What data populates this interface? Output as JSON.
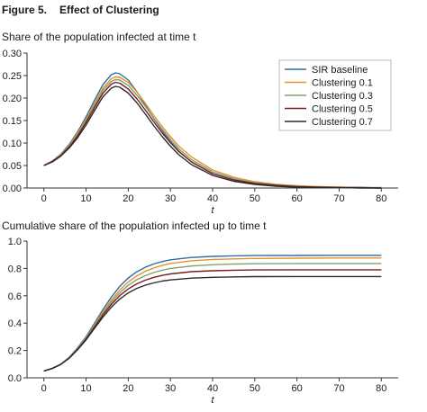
{
  "figure": {
    "number": "Figure 5.",
    "title": "Effect of Clustering"
  },
  "legend": [
    "SIR baseline",
    "Clustering 0.1",
    "Clustering 0.3",
    "Clustering 0.5",
    "Clustering 0.7"
  ],
  "colors": {
    "SIR baseline": "#2e6fa6",
    "Clustering 0.1": "#e8902c",
    "Clustering 0.3": "#7fa46b",
    "Clustering 0.5": "#7b1c23",
    "Clustering 0.7": "#2b2b2b"
  },
  "chart_data": [
    {
      "type": "line",
      "title": "Share of the population infected at time t",
      "xlabel": "t",
      "ylabel": "",
      "xlim": [
        -4,
        84
      ],
      "ylim": [
        0,
        0.3
      ],
      "xticks": [
        0,
        10,
        20,
        30,
        40,
        50,
        60,
        70,
        80
      ],
      "yticks": [
        "0.00",
        "0.05",
        "0.10",
        "0.15",
        "0.20",
        "0.25",
        "0.30"
      ],
      "legend_position": "top-right",
      "x": [
        0,
        2,
        4,
        6,
        8,
        10,
        12,
        14,
        16,
        17,
        18,
        20,
        22,
        24,
        26,
        28,
        30,
        32,
        35,
        40,
        45,
        50,
        55,
        60,
        65,
        70,
        75,
        80
      ],
      "series": [
        {
          "name": "SIR baseline",
          "values": [
            0.05,
            0.06,
            0.075,
            0.097,
            0.125,
            0.158,
            0.195,
            0.23,
            0.252,
            0.256,
            0.254,
            0.24,
            0.215,
            0.185,
            0.155,
            0.128,
            0.103,
            0.082,
            0.058,
            0.032,
            0.018,
            0.01,
            0.006,
            0.003,
            0.002,
            0.001,
            0.001,
            0.0
          ]
        },
        {
          "name": "Clustering 0.1",
          "values": [
            0.05,
            0.06,
            0.074,
            0.095,
            0.122,
            0.153,
            0.188,
            0.222,
            0.243,
            0.247,
            0.246,
            0.235,
            0.214,
            0.189,
            0.162,
            0.137,
            0.114,
            0.093,
            0.069,
            0.04,
            0.024,
            0.014,
            0.008,
            0.005,
            0.003,
            0.002,
            0.001,
            0.001
          ]
        },
        {
          "name": "Clustering 0.3",
          "values": [
            0.05,
            0.059,
            0.073,
            0.093,
            0.119,
            0.15,
            0.184,
            0.217,
            0.237,
            0.241,
            0.24,
            0.228,
            0.207,
            0.182,
            0.156,
            0.131,
            0.108,
            0.087,
            0.063,
            0.036,
            0.021,
            0.012,
            0.007,
            0.004,
            0.002,
            0.001,
            0.001,
            0.0
          ]
        },
        {
          "name": "Clustering 0.5",
          "values": [
            0.05,
            0.059,
            0.072,
            0.091,
            0.116,
            0.146,
            0.179,
            0.211,
            0.231,
            0.235,
            0.233,
            0.22,
            0.199,
            0.174,
            0.148,
            0.123,
            0.101,
            0.081,
            0.058,
            0.032,
            0.018,
            0.01,
            0.006,
            0.003,
            0.002,
            0.001,
            0.001,
            0.0
          ]
        },
        {
          "name": "Clustering 0.7",
          "values": [
            0.05,
            0.058,
            0.071,
            0.089,
            0.112,
            0.14,
            0.172,
            0.203,
            0.222,
            0.226,
            0.224,
            0.211,
            0.19,
            0.165,
            0.139,
            0.115,
            0.093,
            0.074,
            0.052,
            0.028,
            0.015,
            0.008,
            0.004,
            0.002,
            0.001,
            0.001,
            0.0,
            0.0
          ]
        }
      ]
    },
    {
      "type": "line",
      "title": "Cumulative share of the population infected up to time t",
      "xlabel": "t",
      "ylabel": "",
      "xlim": [
        -4,
        84
      ],
      "ylim": [
        0,
        1.0
      ],
      "xticks": [
        0,
        10,
        20,
        30,
        40,
        50,
        60,
        70,
        80
      ],
      "yticks": [
        "0.0",
        "0.2",
        "0.4",
        "0.6",
        "0.8",
        "1.0"
      ],
      "x": [
        0,
        2,
        4,
        6,
        8,
        10,
        12,
        14,
        16,
        18,
        20,
        22,
        24,
        26,
        28,
        30,
        35,
        40,
        45,
        50,
        60,
        70,
        80
      ],
      "series": [
        {
          "name": "SIR baseline",
          "values": [
            0.05,
            0.07,
            0.1,
            0.15,
            0.22,
            0.3,
            0.4,
            0.5,
            0.59,
            0.67,
            0.73,
            0.775,
            0.808,
            0.832,
            0.85,
            0.863,
            0.88,
            0.888,
            0.892,
            0.894,
            0.895,
            0.896,
            0.896
          ]
        },
        {
          "name": "Clustering 0.1",
          "values": [
            0.05,
            0.07,
            0.1,
            0.148,
            0.215,
            0.293,
            0.388,
            0.483,
            0.568,
            0.642,
            0.7,
            0.745,
            0.778,
            0.803,
            0.822,
            0.836,
            0.856,
            0.866,
            0.87,
            0.873,
            0.875,
            0.876,
            0.876
          ]
        },
        {
          "name": "Clustering 0.3",
          "values": [
            0.05,
            0.069,
            0.099,
            0.146,
            0.212,
            0.288,
            0.38,
            0.472,
            0.553,
            0.622,
            0.676,
            0.717,
            0.747,
            0.77,
            0.787,
            0.8,
            0.818,
            0.827,
            0.832,
            0.834,
            0.836,
            0.836,
            0.836
          ]
        },
        {
          "name": "Clustering 0.5",
          "values": [
            0.05,
            0.069,
            0.099,
            0.145,
            0.209,
            0.283,
            0.372,
            0.46,
            0.537,
            0.601,
            0.65,
            0.687,
            0.714,
            0.734,
            0.749,
            0.76,
            0.776,
            0.783,
            0.787,
            0.789,
            0.79,
            0.79,
            0.79
          ]
        },
        {
          "name": "Clustering 0.7",
          "values": [
            0.05,
            0.068,
            0.098,
            0.143,
            0.205,
            0.277,
            0.362,
            0.445,
            0.517,
            0.576,
            0.621,
            0.654,
            0.677,
            0.694,
            0.707,
            0.716,
            0.729,
            0.735,
            0.738,
            0.74,
            0.741,
            0.741,
            0.741
          ]
        }
      ]
    }
  ]
}
